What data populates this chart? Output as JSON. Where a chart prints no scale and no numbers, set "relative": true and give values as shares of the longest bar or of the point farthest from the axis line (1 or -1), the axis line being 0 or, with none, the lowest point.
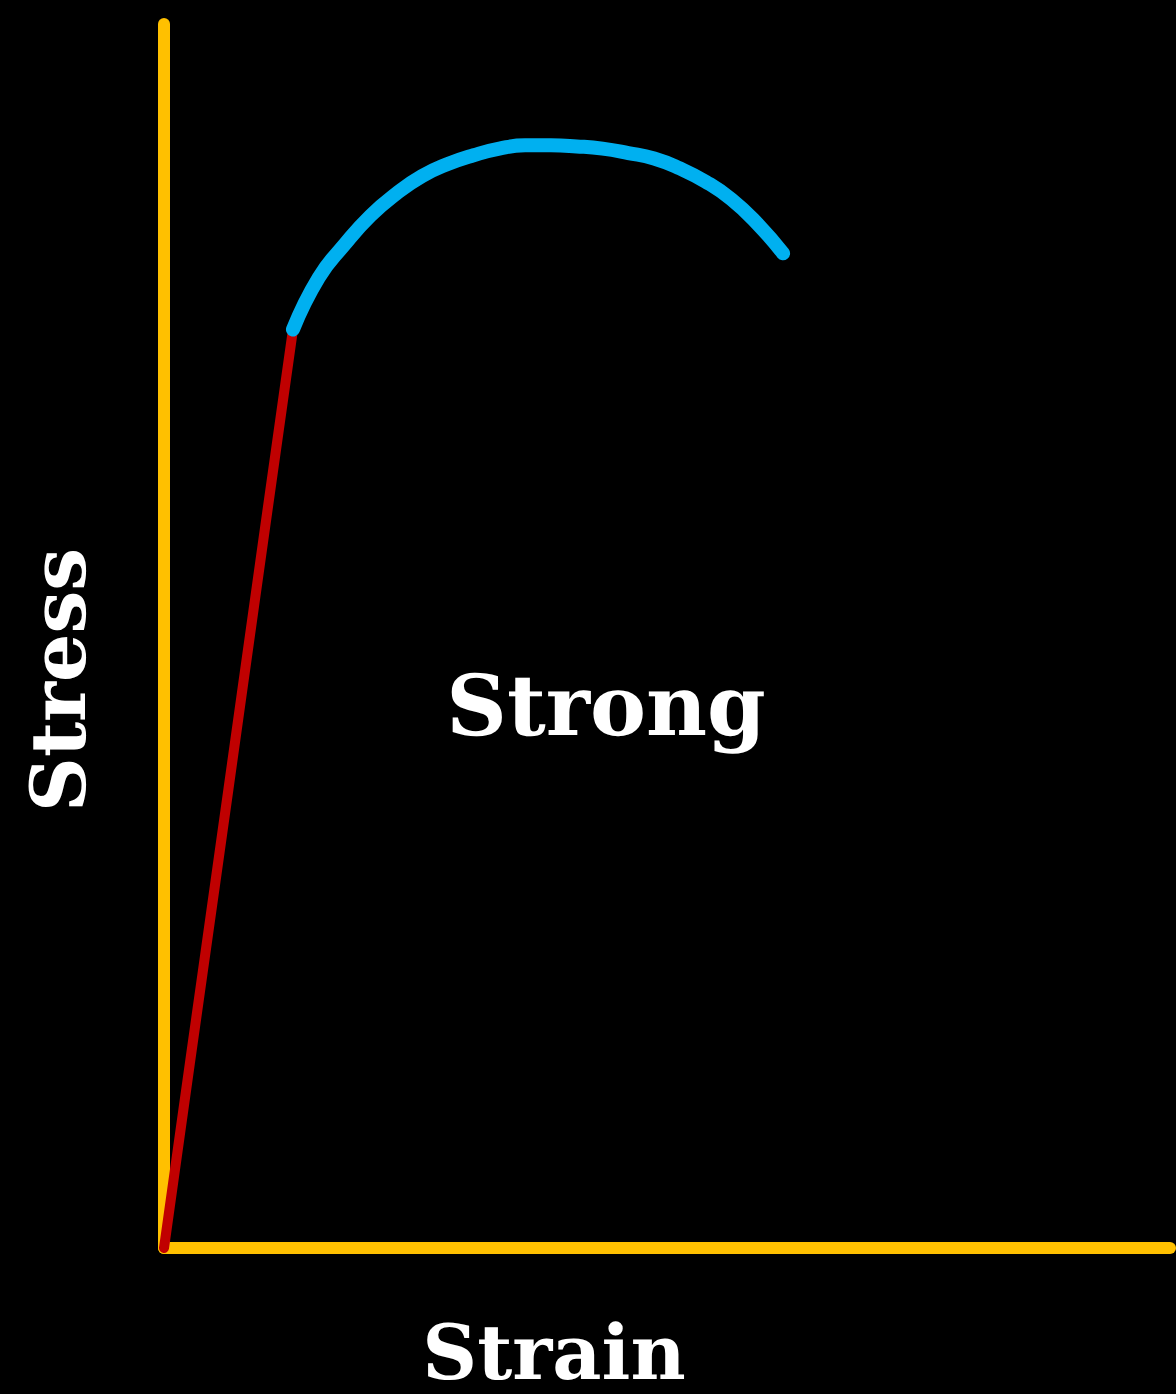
{
  "chart_data": {
    "type": "line",
    "relative": true,
    "xlabel": "Strain",
    "ylabel": "Stress",
    "annotations": [
      "Strong"
    ],
    "marker": "none",
    "categories": [
      null,
      null,
      null,
      null,
      null,
      null,
      null,
      null,
      null,
      null,
      null,
      null,
      null,
      null,
      null,
      null,
      null,
      null,
      null,
      null,
      null,
      null,
      null,
      null,
      null,
      null,
      null,
      null,
      null,
      null,
      null,
      null,
      null,
      null,
      null,
      null,
      null,
      null,
      null,
      null
    ],
    "series": [
      {
        "color": "#c00000",
        "values": [
          0,
          0.167,
          0.333,
          0.5,
          0.667,
          0.833,
          null,
          null,
          null,
          null,
          null,
          null,
          null,
          null,
          null,
          null,
          null,
          null,
          null,
          null,
          null,
          null,
          null,
          null,
          null,
          null,
          null,
          null,
          null,
          null,
          null,
          null,
          null,
          null,
          null,
          null,
          null,
          null,
          null,
          null
        ]
      },
      {
        "color": "#00b0f0",
        "values": [
          null,
          null,
          null,
          null,
          null,
          0.833,
          0.88,
          0.91,
          0.936,
          0.956,
          0.972,
          0.983,
          0.991,
          0.997,
          1,
          1,
          0.999,
          0.997,
          0.993,
          0.988,
          0.979,
          0.967,
          0.951,
          0.929,
          0.902,
          null,
          null,
          null,
          null,
          null,
          null,
          null,
          null,
          null,
          null,
          null,
          null,
          null,
          null,
          null
        ]
      }
    ]
  }
}
